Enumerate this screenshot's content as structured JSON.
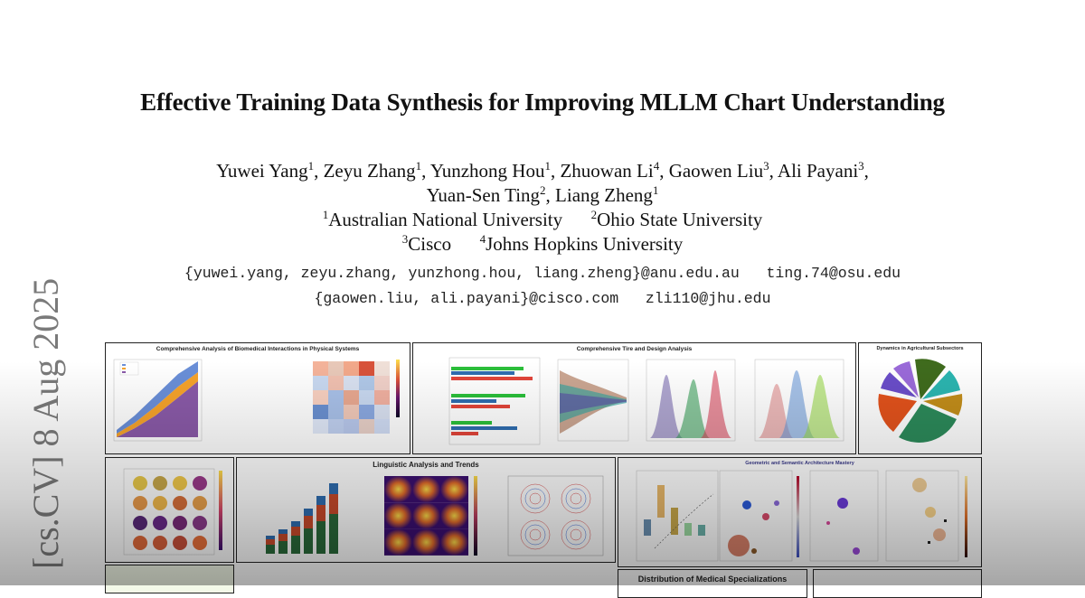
{
  "paper": {
    "title": "Effective Training Data Synthesis for Improving MLLM Chart Understanding",
    "authors": [
      {
        "name": "Yuwei Yang",
        "aff": "1"
      },
      {
        "name": "Zeyu Zhang",
        "aff": "1"
      },
      {
        "name": "Yunzhong Hou",
        "aff": "1"
      },
      {
        "name": "Zhuowan Li",
        "aff": "4"
      },
      {
        "name": "Gaowen Liu",
        "aff": "3"
      },
      {
        "name": "Ali Payani",
        "aff": "3"
      },
      {
        "name": "Yuan-Sen Ting",
        "aff": "2"
      },
      {
        "name": "Liang Zheng",
        "aff": "1"
      }
    ],
    "affiliations": [
      {
        "num": "1",
        "name": "Australian National University"
      },
      {
        "num": "2",
        "name": "Ohio State University"
      },
      {
        "num": "3",
        "name": "Cisco"
      },
      {
        "num": "4",
        "name": "Johns Hopkins University"
      }
    ],
    "emails": [
      "{yuwei.yang, zeyu.zhang, yunzhong.hou, liang.zheng}@anu.edu.au   ting.74@osu.edu",
      "{gaowen.liu, ali.payani}@cisco.com   zli110@jhu.edu"
    ],
    "arxiv_stamp": "[cs.CV]  8 Aug 2025"
  },
  "figure": {
    "panel_titles": {
      "p1": "Comprehensive Analysis of Biomedical Interactions in Physical Systems",
      "p2": "Comprehensive Tire and Design Analysis",
      "p3": "Dynamics in Agricultural Subsectors",
      "p5": "Linguistic Analysis and Trends",
      "p6": "Geometric and Semantic Architecture Mastery",
      "p8": "Distribution of Medical Specializations"
    },
    "colors": {
      "bar_red": "#e2453a",
      "bar_green": "#2bbf3a",
      "bar_blue": "#2f6db0",
      "area_blue": "#6a8fd8",
      "area_orange": "#f6a32b",
      "area_purple": "#8a5aa8",
      "pie": [
        "#3f6b1d",
        "#2bb5b0",
        "#c28d1a",
        "#2c8a5a",
        "#e2521c",
        "#6a4dc9",
        "#9a6ad9"
      ]
    }
  }
}
